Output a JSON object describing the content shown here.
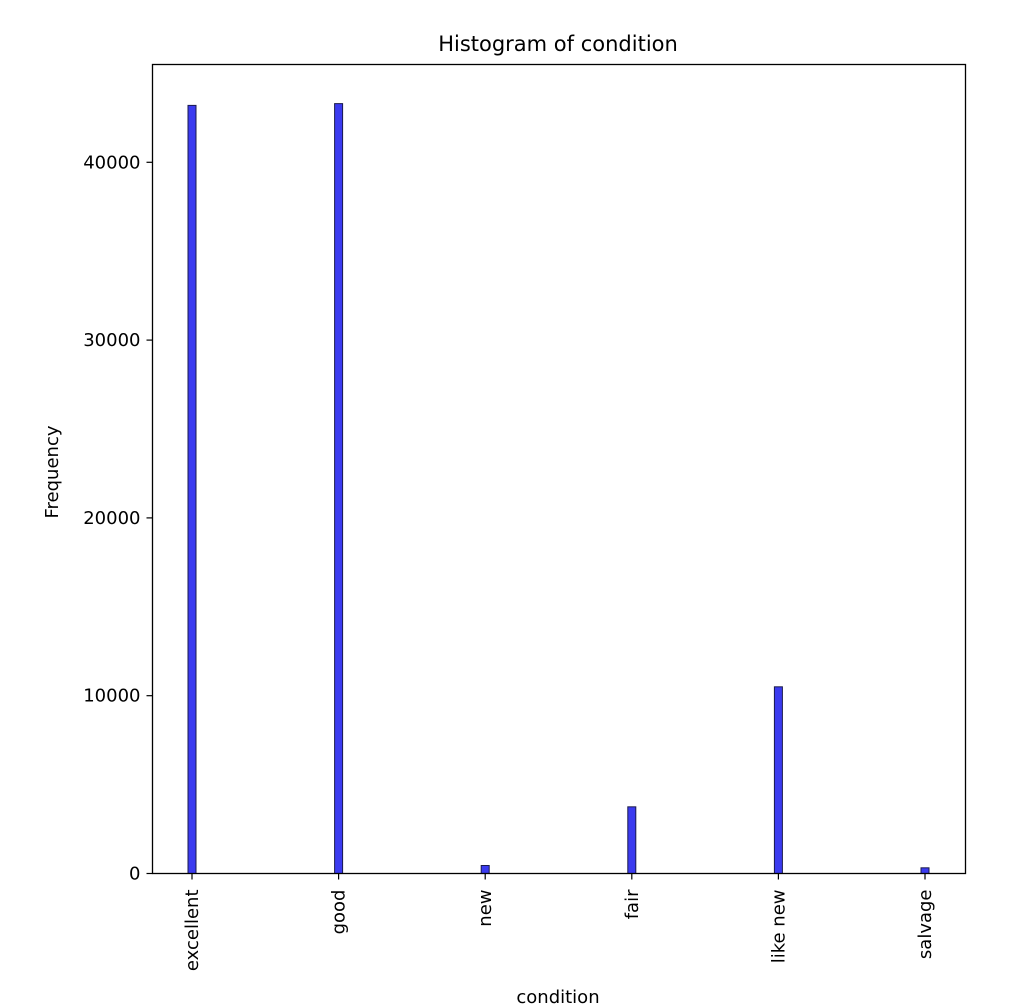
{
  "chart_data": {
    "type": "bar",
    "title": "Histogram of condition",
    "xlabel": "condition",
    "ylabel": "Frequency",
    "categories": [
      "excellent",
      "good",
      "new",
      "fair",
      "like new",
      "salvage"
    ],
    "values": [
      43200,
      43300,
      450,
      3750,
      10500,
      320
    ],
    "ylim": [
      0,
      45500
    ],
    "yticks": [
      0,
      10000,
      20000,
      30000,
      40000
    ],
    "grid": false,
    "bar_color": "#3b3bf0",
    "bar_edge_color": "#1a1a4d"
  }
}
